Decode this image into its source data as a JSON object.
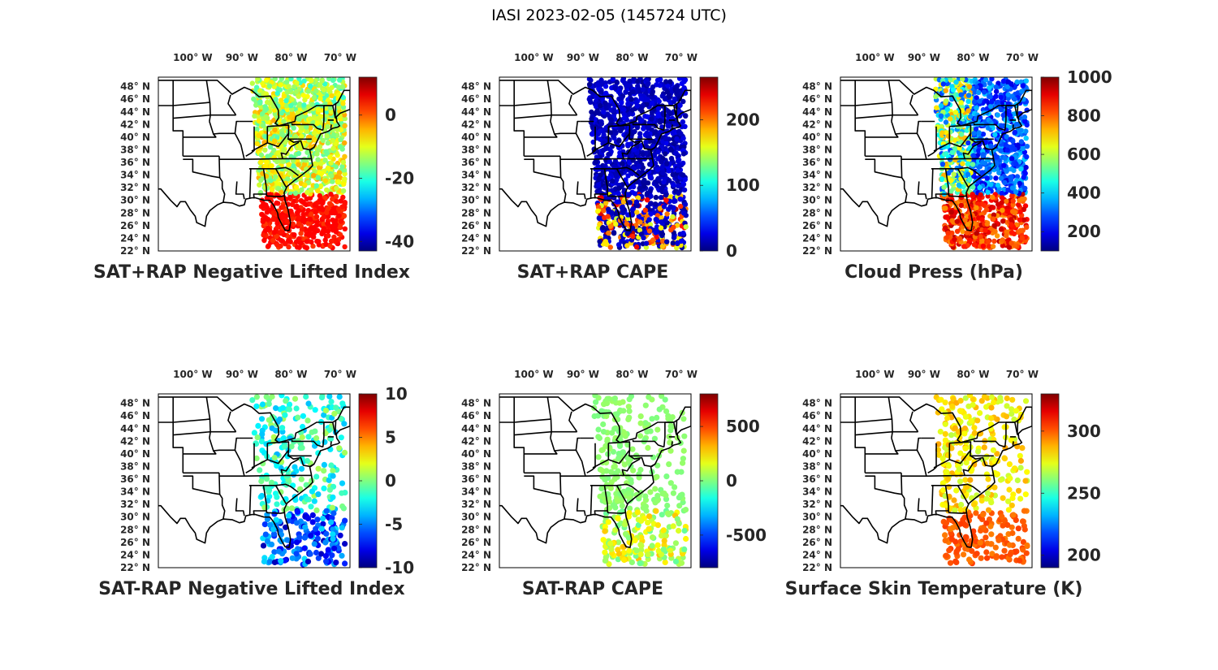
{
  "figure_title": "IASI 2023-02-05 (145724 UTC)",
  "colors": {
    "land_outline": "#000000",
    "frame": "#000000",
    "tick_text": "#262626"
  },
  "chart_data": [
    {
      "type": "scatter",
      "id": "sat-rap-nli",
      "title": "SAT+RAP Negative Lifted Index",
      "lon_ticks": [
        "100° W",
        "90° W",
        "80° W",
        "70° W"
      ],
      "lat_ticks": [
        "48° N",
        "46° N",
        "44° N",
        "42° N",
        "40° N",
        "38° N",
        "36° N",
        "34° N",
        "32° N",
        "30° N",
        "28° N",
        "26° N",
        "24° N",
        "22° N"
      ],
      "xlim": [
        -107,
        -68
      ],
      "ylim": [
        22,
        49.5
      ],
      "colorbar": {
        "range": [
          -43,
          12
        ],
        "ticks": [
          0,
          -20,
          -40
        ],
        "colormap": "jet"
      },
      "swath_lon_range": [
        -88,
        -69
      ],
      "value_range": [
        -25,
        5
      ]
    },
    {
      "type": "scatter",
      "id": "sat-rap-cape",
      "title": "SAT+RAP CAPE",
      "lon_ticks": [
        "100° W",
        "90° W",
        "80° W",
        "70° W"
      ],
      "lat_ticks": [
        "48° N",
        "46° N",
        "44° N",
        "42° N",
        "40° N",
        "38° N",
        "36° N",
        "34° N",
        "32° N",
        "30° N",
        "28° N",
        "26° N",
        "24° N",
        "22° N"
      ],
      "xlim": [
        -107,
        -68
      ],
      "ylim": [
        22,
        49.5
      ],
      "colorbar": {
        "range": [
          0,
          265
        ],
        "ticks": [
          200,
          100,
          0
        ],
        "colormap": "jet"
      },
      "swath_lon_range": [
        -89,
        -69
      ],
      "value_range": [
        0,
        260
      ]
    },
    {
      "type": "scatter",
      "id": "cloud-press",
      "title": "Cloud Press (hPa)",
      "lon_ticks": [
        "100° W",
        "90° W",
        "80° W",
        "70° W"
      ],
      "lat_ticks": [
        "48° N",
        "46° N",
        "44° N",
        "42° N",
        "40° N",
        "38° N",
        "36° N",
        "34° N",
        "32° N",
        "30° N",
        "28° N",
        "26° N",
        "24° N",
        "22° N"
      ],
      "xlim": [
        -107,
        -68
      ],
      "ylim": [
        22,
        49.5
      ],
      "colorbar": {
        "range": [
          100,
          1000
        ],
        "ticks": [
          1000,
          800,
          600,
          400,
          200
        ],
        "colormap": "jet"
      },
      "swath_lon_range": [
        -88,
        -69
      ],
      "value_range": [
        150,
        950
      ]
    },
    {
      "type": "scatter",
      "id": "sat-minus-rap-nli",
      "title": "SAT-RAP Negative Lifted Index",
      "lon_ticks": [
        "100° W",
        "90° W",
        "80° W",
        "70° W"
      ],
      "lat_ticks": [
        "48° N",
        "46° N",
        "44° N",
        "42° N",
        "40° N",
        "38° N",
        "36° N",
        "34° N",
        "32° N",
        "30° N",
        "28° N",
        "26° N",
        "24° N",
        "22° N"
      ],
      "xlim": [
        -107,
        -68
      ],
      "ylim": [
        22,
        49.5
      ],
      "colorbar": {
        "range": [
          -10,
          10
        ],
        "ticks": [
          10,
          5,
          0,
          -5,
          -10
        ],
        "colormap": "jet"
      },
      "swath_lon_range": [
        -88,
        -69
      ],
      "value_range": [
        -10,
        3
      ]
    },
    {
      "type": "scatter",
      "id": "sat-minus-rap-cape",
      "title": "SAT-RAP CAPE",
      "lon_ticks": [
        "100° W",
        "90° W",
        "80° W",
        "70° W"
      ],
      "lat_ticks": [
        "48° N",
        "46° N",
        "44° N",
        "42° N",
        "40° N",
        "38° N",
        "36° N",
        "34° N",
        "32° N",
        "30° N",
        "28° N",
        "26° N",
        "24° N",
        "22° N"
      ],
      "xlim": [
        -107,
        -68
      ],
      "ylim": [
        22,
        49.5
      ],
      "colorbar": {
        "range": [
          -800,
          800
        ],
        "ticks": [
          500,
          0,
          -500
        ],
        "colormap": "jet"
      },
      "swath_lon_range": [
        -88,
        -69
      ],
      "value_range": [
        -100,
        300
      ]
    },
    {
      "type": "scatter",
      "id": "surface-skin-temp",
      "title": "Surface Skin Temperature (K)",
      "lon_ticks": [
        "100° W",
        "90° W",
        "80° W",
        "70° W"
      ],
      "lat_ticks": [
        "48° N",
        "46° N",
        "44° N",
        "42° N",
        "40° N",
        "38° N",
        "36° N",
        "34° N",
        "32° N",
        "30° N",
        "28° N",
        "26° N",
        "24° N",
        "22° N"
      ],
      "xlim": [
        -107,
        -68
      ],
      "ylim": [
        22,
        49.5
      ],
      "colorbar": {
        "range": [
          190,
          330
        ],
        "ticks": [
          300,
          250,
          200
        ],
        "colormap": "jet"
      },
      "swath_lon_range": [
        -88,
        -69
      ],
      "value_range": [
        260,
        310
      ]
    }
  ]
}
